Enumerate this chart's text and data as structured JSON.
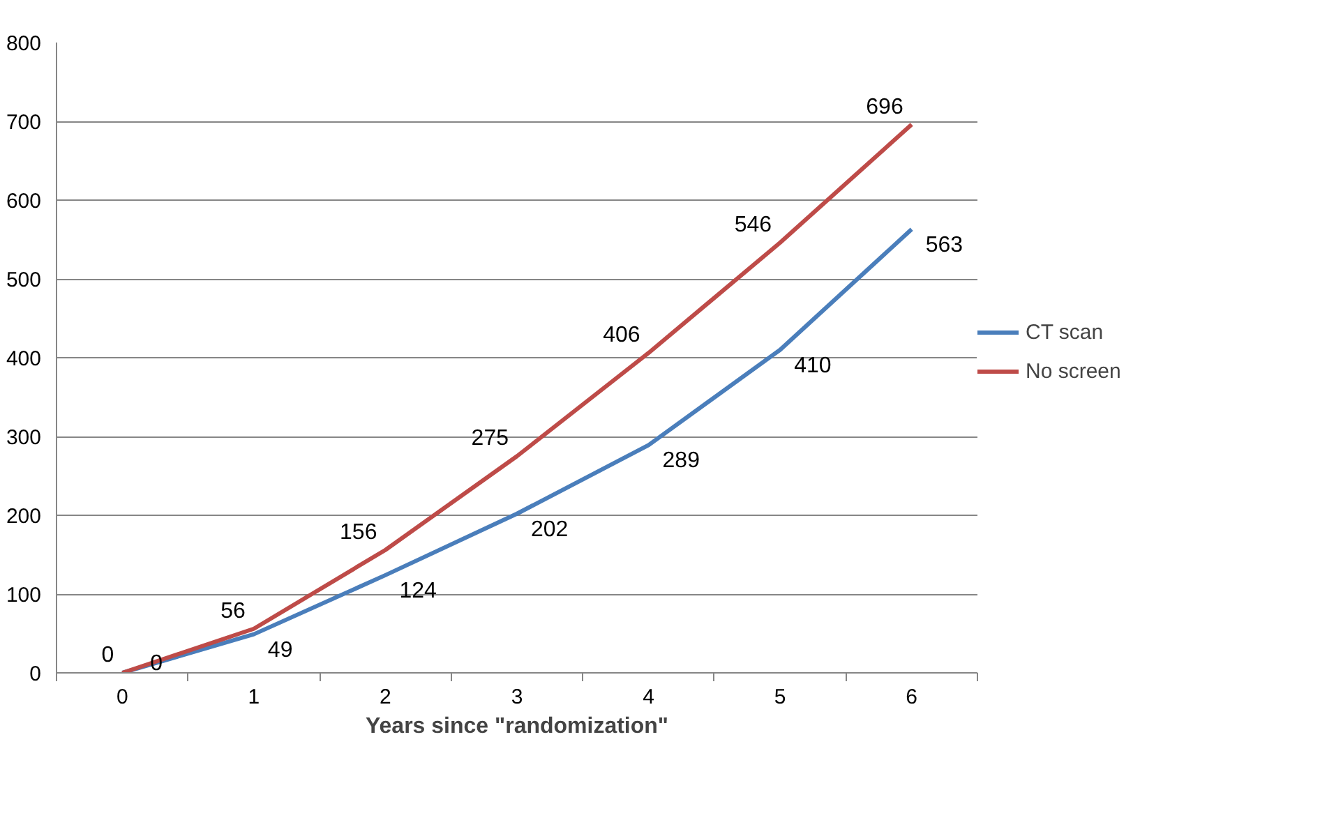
{
  "chart_data": {
    "type": "line",
    "xlabel": "Years since \"randomization\"",
    "categories": [
      "0",
      "1",
      "2",
      "3",
      "4",
      "5",
      "6"
    ],
    "series": [
      {
        "name": "CT scan",
        "color": "#4a7ebb",
        "values": [
          0,
          49,
          124,
          202,
          289,
          410,
          563
        ]
      },
      {
        "name": "No screen",
        "color": "#be4b48",
        "values": [
          0,
          56,
          156,
          275,
          406,
          546,
          696
        ]
      }
    ],
    "ylim": [
      0,
      800
    ],
    "yticks": [
      0,
      100,
      200,
      300,
      400,
      500,
      600,
      700,
      800
    ],
    "grid": "y",
    "legend": "right",
    "data_labels": true,
    "marker": "none",
    "line_style": "solid"
  }
}
